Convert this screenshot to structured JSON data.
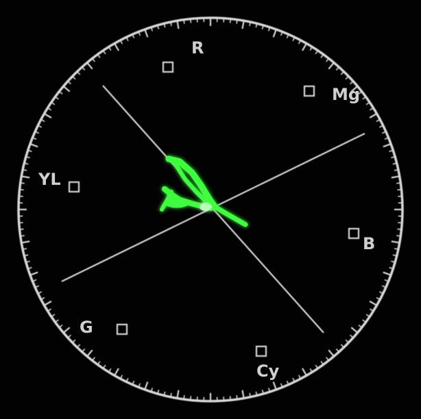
{
  "vectorscope": {
    "targets": [
      {
        "key": "r",
        "label": "R"
      },
      {
        "key": "mg",
        "label": "Mg"
      },
      {
        "key": "b",
        "label": "B"
      },
      {
        "key": "cy",
        "label": "Cy"
      },
      {
        "key": "g",
        "label": "G"
      },
      {
        "key": "yl",
        "label": "YL"
      }
    ],
    "colors": {
      "background": "#020202",
      "graticule": "#d8d8d8",
      "trace": "#3cff3c"
    }
  }
}
